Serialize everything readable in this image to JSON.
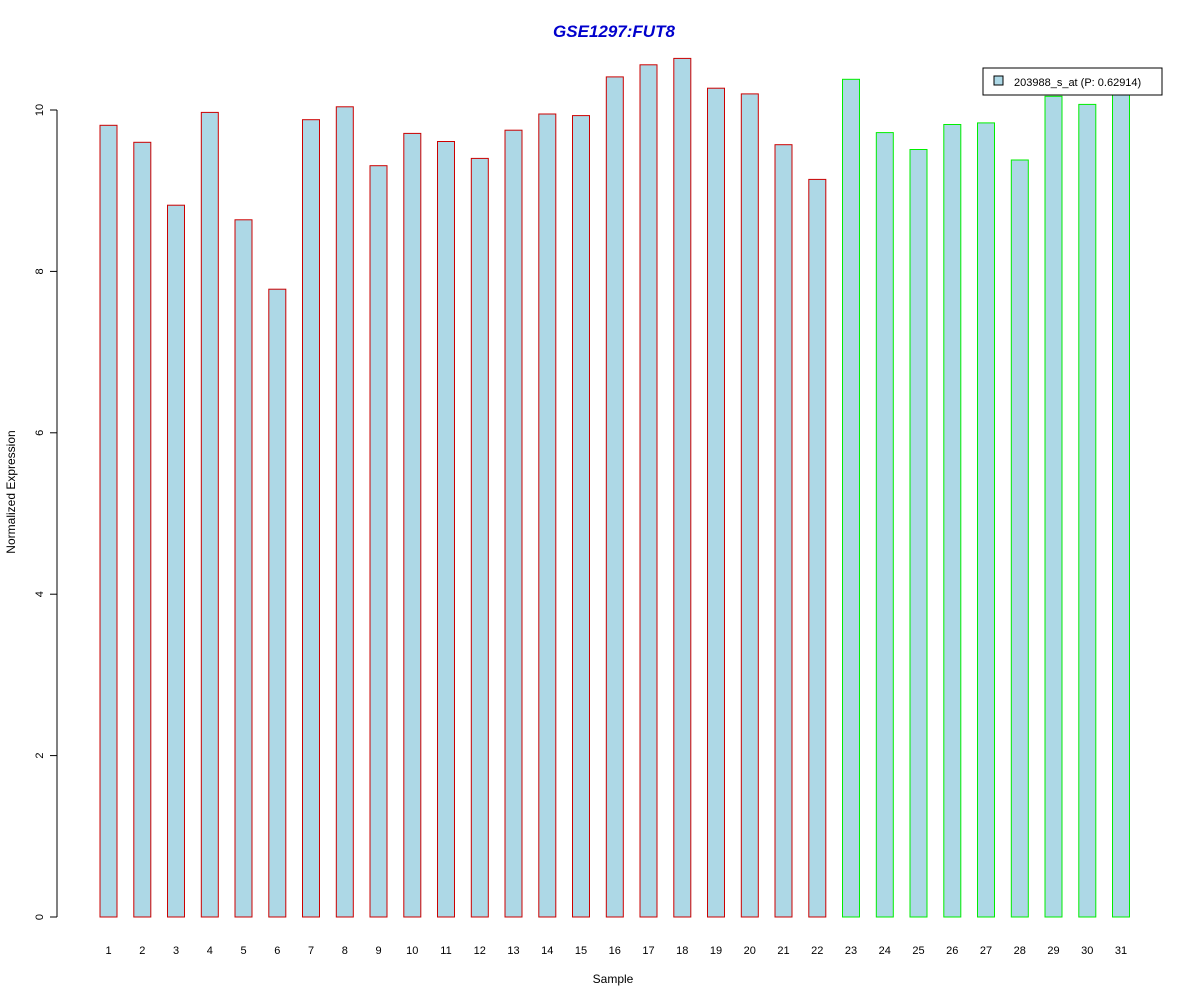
{
  "chart_data": {
    "type": "bar",
    "title": "GSE1297:FUT8",
    "xlabel": "Sample",
    "ylabel": "Normalized Expression",
    "ylim": [
      0,
      10.6
    ],
    "yticks": [
      0,
      2,
      4,
      6,
      8,
      10
    ],
    "grid": false,
    "legend": {
      "placement": "top-right",
      "label": "203988_s_at (P: 0.62914)",
      "fill": "#add8e6"
    },
    "bar_fill": "#add8e6",
    "group_colors": {
      "group1": "#cc0000",
      "group2": "#00ee00"
    },
    "categories": [
      "1",
      "2",
      "3",
      "4",
      "5",
      "6",
      "7",
      "8",
      "9",
      "10",
      "11",
      "12",
      "13",
      "14",
      "15",
      "16",
      "17",
      "18",
      "19",
      "20",
      "21",
      "22",
      "23",
      "24",
      "25",
      "26",
      "27",
      "28",
      "29",
      "30",
      "31"
    ],
    "values": [
      9.81,
      9.6,
      8.82,
      9.97,
      8.64,
      7.78,
      9.88,
      10.04,
      9.31,
      9.71,
      9.61,
      9.4,
      9.75,
      9.95,
      9.93,
      10.41,
      10.56,
      10.64,
      10.27,
      10.2,
      9.57,
      9.14,
      10.38,
      9.72,
      9.51,
      9.82,
      9.84,
      9.38,
      10.17,
      10.07,
      10.22
    ],
    "groups": [
      "group1",
      "group1",
      "group1",
      "group1",
      "group1",
      "group1",
      "group1",
      "group1",
      "group1",
      "group1",
      "group1",
      "group1",
      "group1",
      "group1",
      "group1",
      "group1",
      "group1",
      "group1",
      "group1",
      "group1",
      "group1",
      "group1",
      "group2",
      "group2",
      "group2",
      "group2",
      "group2",
      "group2",
      "group2",
      "group2",
      "group2"
    ]
  },
  "title_color": "#0000cc"
}
